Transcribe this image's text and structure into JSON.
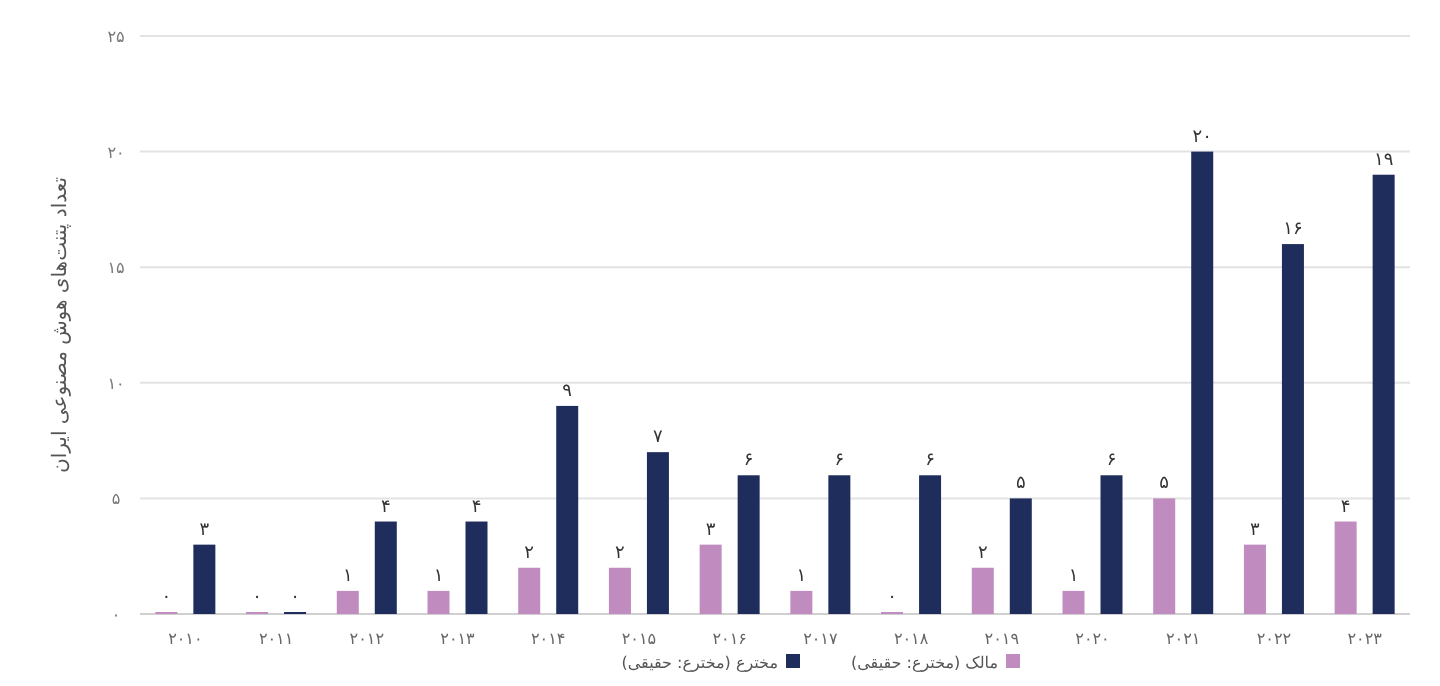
{
  "chart_data": {
    "type": "bar",
    "ylabel": "تعداد پتنت‌های هوش مصنوعی ایران",
    "categories": [
      "۲۰۱۰",
      "۲۰۱۱",
      "۲۰۱۲",
      "۲۰۱۳",
      "۲۰۱۴",
      "۲۰۱۵",
      "۲۰۱۶",
      "۲۰۱۷",
      "۲۰۱۸",
      "۲۰۱۹",
      "۲۰۲۰",
      "۲۰۲۱",
      "۲۰۲۲",
      "۲۰۲۳"
    ],
    "series": [
      {
        "name": "مالک (مخترع: حقیقی)",
        "color": "#c08bbe",
        "values": [
          0,
          0,
          1,
          1,
          2,
          2,
          3,
          1,
          0,
          2,
          1,
          5,
          3,
          4
        ],
        "value_labels": [
          "۰",
          "۰",
          "۱",
          "۱",
          "۲",
          "۲",
          "۳",
          "۱",
          "۰",
          "۲",
          "۱",
          "۵",
          "۳",
          "۴"
        ]
      },
      {
        "name": "مخترع (مخترع: حقیقی)",
        "color": "#1f2d5c",
        "values": [
          3,
          0,
          4,
          4,
          9,
          7,
          6,
          6,
          6,
          5,
          6,
          20,
          16,
          19
        ],
        "value_labels": [
          "۳",
          "۰",
          "۴",
          "۴",
          "۹",
          "۷",
          "۶",
          "۶",
          "۶",
          "۵",
          "۶",
          "۲۰",
          "۱۶",
          "۱۹"
        ]
      }
    ],
    "ylim": [
      0,
      25
    ],
    "yticks": [
      {
        "value": 0,
        "label": "۰"
      },
      {
        "value": 5,
        "label": "۵"
      },
      {
        "value": 10,
        "label": "۱۰"
      },
      {
        "value": 15,
        "label": "۱۵"
      },
      {
        "value": 20,
        "label": "۲۰"
      },
      {
        "value": 25,
        "label": "۲۵"
      }
    ],
    "grid": "y",
    "legend": "bottom"
  }
}
